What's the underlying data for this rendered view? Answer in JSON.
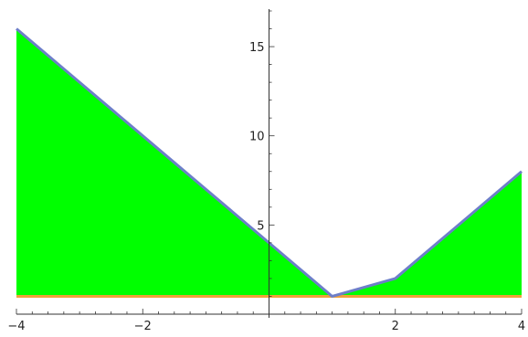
{
  "chart_data": {
    "type": "area",
    "title": "",
    "xlabel": "",
    "ylabel": "",
    "xlim": [
      -4,
      4
    ],
    "ylim": [
      0,
      17
    ],
    "grid": false,
    "baseline": 1,
    "x_ticks": [
      -4,
      -2,
      2,
      4
    ],
    "x_tick_labels": [
      "−4",
      "−2",
      "2",
      "4"
    ],
    "y_ticks": [
      5,
      10,
      15
    ],
    "y_tick_labels": [
      "5",
      "10",
      "15"
    ],
    "series": [
      {
        "x": [
          -4,
          -3,
          -2,
          -1,
          0,
          1,
          2,
          3,
          4
        ],
        "y": [
          16,
          13,
          10,
          7,
          4,
          1,
          2,
          5,
          8
        ]
      },
      {
        "x": [
          -4,
          4
        ],
        "y": [
          1,
          1
        ]
      }
    ],
    "colors": {
      "fill": "#00ff00",
      "curve": "#6d7fc9",
      "baseline": "#f0a23a",
      "axis": "#333333"
    }
  }
}
